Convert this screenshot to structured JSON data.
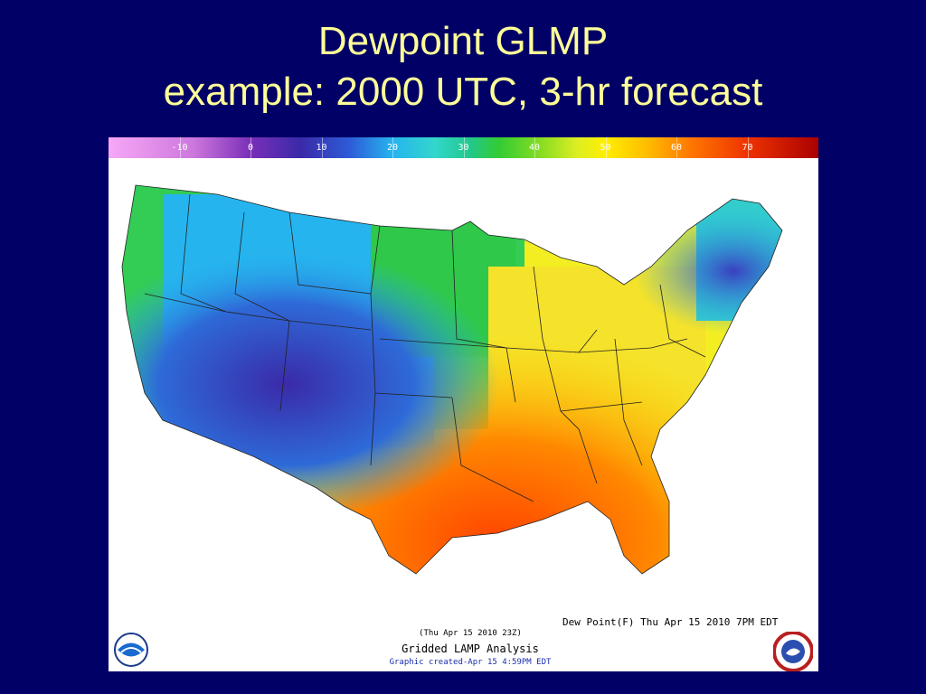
{
  "title": {
    "line1": "Dewpoint GLMP",
    "line2": "example:  2000 UTC, 3-hr forecast"
  },
  "colorbar": {
    "ticks": [
      "-10",
      "0",
      "10",
      "20",
      "30",
      "40",
      "50",
      "60",
      "70"
    ],
    "range_min": -20,
    "range_max": 80,
    "colors": [
      "#f7a8f7",
      "#7a2fb8",
      "#2e5bd8",
      "#26b4ee",
      "#33cc33",
      "#ddee22",
      "#ffbb00",
      "#ee3300",
      "#aa0000"
    ]
  },
  "map": {
    "caption_right": "Dew Point(F) Thu Apr 15 2010  7PM EDT",
    "caption_date": "(Thu Apr 15 2010 23Z)",
    "caption_product": "Gridded LAMP Analysis",
    "caption_created": "Graphic created-Apr 15  4:59PM EDT",
    "logos": [
      "noaa-logo",
      "nws-logo"
    ]
  }
}
